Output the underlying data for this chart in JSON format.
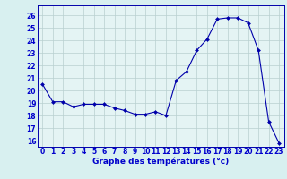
{
  "hours": [
    0,
    1,
    2,
    3,
    4,
    5,
    6,
    7,
    8,
    9,
    10,
    11,
    12,
    13,
    14,
    15,
    16,
    17,
    18,
    19,
    20,
    21,
    22,
    23
  ],
  "temps": [
    20.5,
    19.1,
    19.1,
    18.7,
    18.9,
    18.9,
    18.9,
    18.6,
    18.4,
    18.1,
    18.1,
    18.3,
    18.0,
    20.8,
    21.5,
    23.2,
    24.1,
    25.7,
    25.8,
    25.8,
    25.4,
    23.2,
    17.5,
    15.8
  ],
  "line_color": "#0000aa",
  "marker": "D",
  "marker_size": 2.0,
  "bg_color": "#d8f0f0",
  "grid_color": "#b8d0d0",
  "xlabel": "Graphe des températures (°c)",
  "xlabel_color": "#0000cc",
  "xlabel_fontsize": 6.5,
  "tick_color": "#0000cc",
  "tick_fontsize": 5.5,
  "ylim": [
    15.5,
    26.8
  ],
  "yticks": [
    16,
    17,
    18,
    19,
    20,
    21,
    22,
    23,
    24,
    25,
    26
  ],
  "xlim": [
    -0.5,
    23.5
  ],
  "spine_color": "#0000aa",
  "axis_bg_color": "#e4f4f4"
}
